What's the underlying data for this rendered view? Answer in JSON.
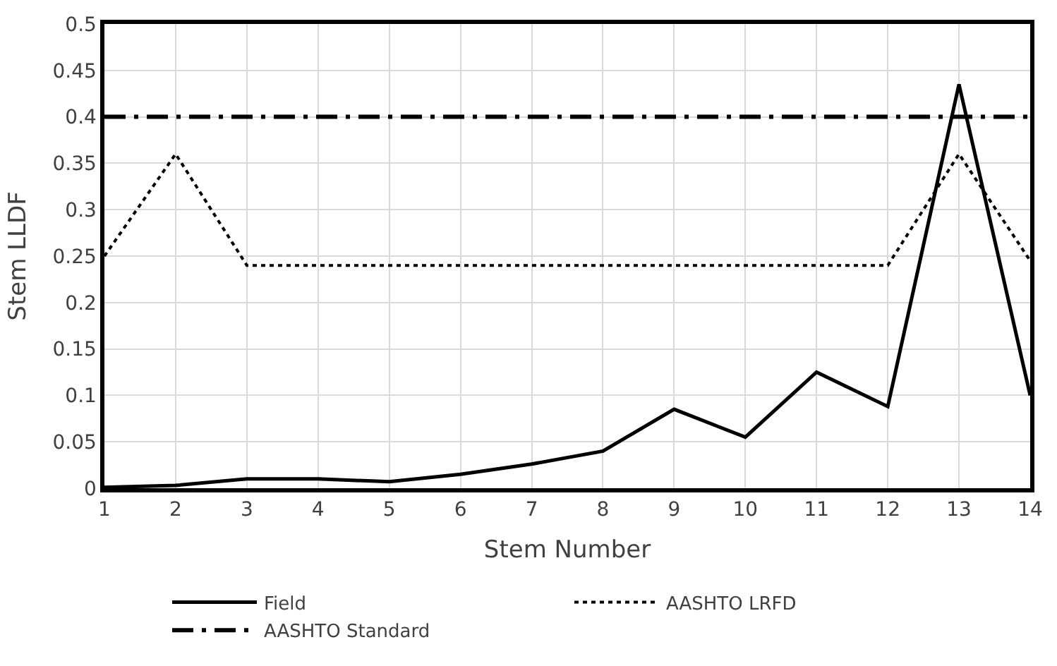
{
  "chart_data": {
    "type": "line",
    "xlabel": "Stem Number",
    "ylabel": "Stem LLDF",
    "x": [
      1,
      2,
      3,
      4,
      5,
      6,
      7,
      8,
      9,
      10,
      11,
      12,
      13,
      14
    ],
    "series": [
      {
        "name": "Field",
        "color": "#000000",
        "line_style": "solid",
        "values": [
          0.001,
          0.003,
          0.01,
          0.01,
          0.007,
          0.015,
          0.026,
          0.04,
          0.085,
          0.055,
          0.125,
          0.088,
          0.435,
          0.1
        ]
      },
      {
        "name": "AASHTO LRFD",
        "color": "#000000",
        "line_style": "dotted",
        "values": [
          0.25,
          0.36,
          0.24,
          0.24,
          0.24,
          0.24,
          0.24,
          0.24,
          0.24,
          0.24,
          0.24,
          0.24,
          0.36,
          0.245
        ]
      },
      {
        "name": "AASHTO Standard",
        "color": "#000000",
        "line_style": "dashdot",
        "values": [
          0.4,
          0.4,
          0.4,
          0.4,
          0.4,
          0.4,
          0.4,
          0.4,
          0.4,
          0.4,
          0.4,
          0.4,
          0.4,
          0.4
        ]
      }
    ],
    "xlim": [
      1,
      14
    ],
    "xticks": [
      1,
      2,
      3,
      4,
      5,
      6,
      7,
      8,
      9,
      10,
      11,
      12,
      13,
      14
    ],
    "ylim": [
      0,
      0.5
    ],
    "yticks": [
      0,
      0.05,
      0.1,
      0.15,
      0.2,
      0.25,
      0.3,
      0.35,
      0.4,
      0.45,
      0.5
    ],
    "grid": true,
    "legend": "bottom",
    "marker": "none"
  }
}
